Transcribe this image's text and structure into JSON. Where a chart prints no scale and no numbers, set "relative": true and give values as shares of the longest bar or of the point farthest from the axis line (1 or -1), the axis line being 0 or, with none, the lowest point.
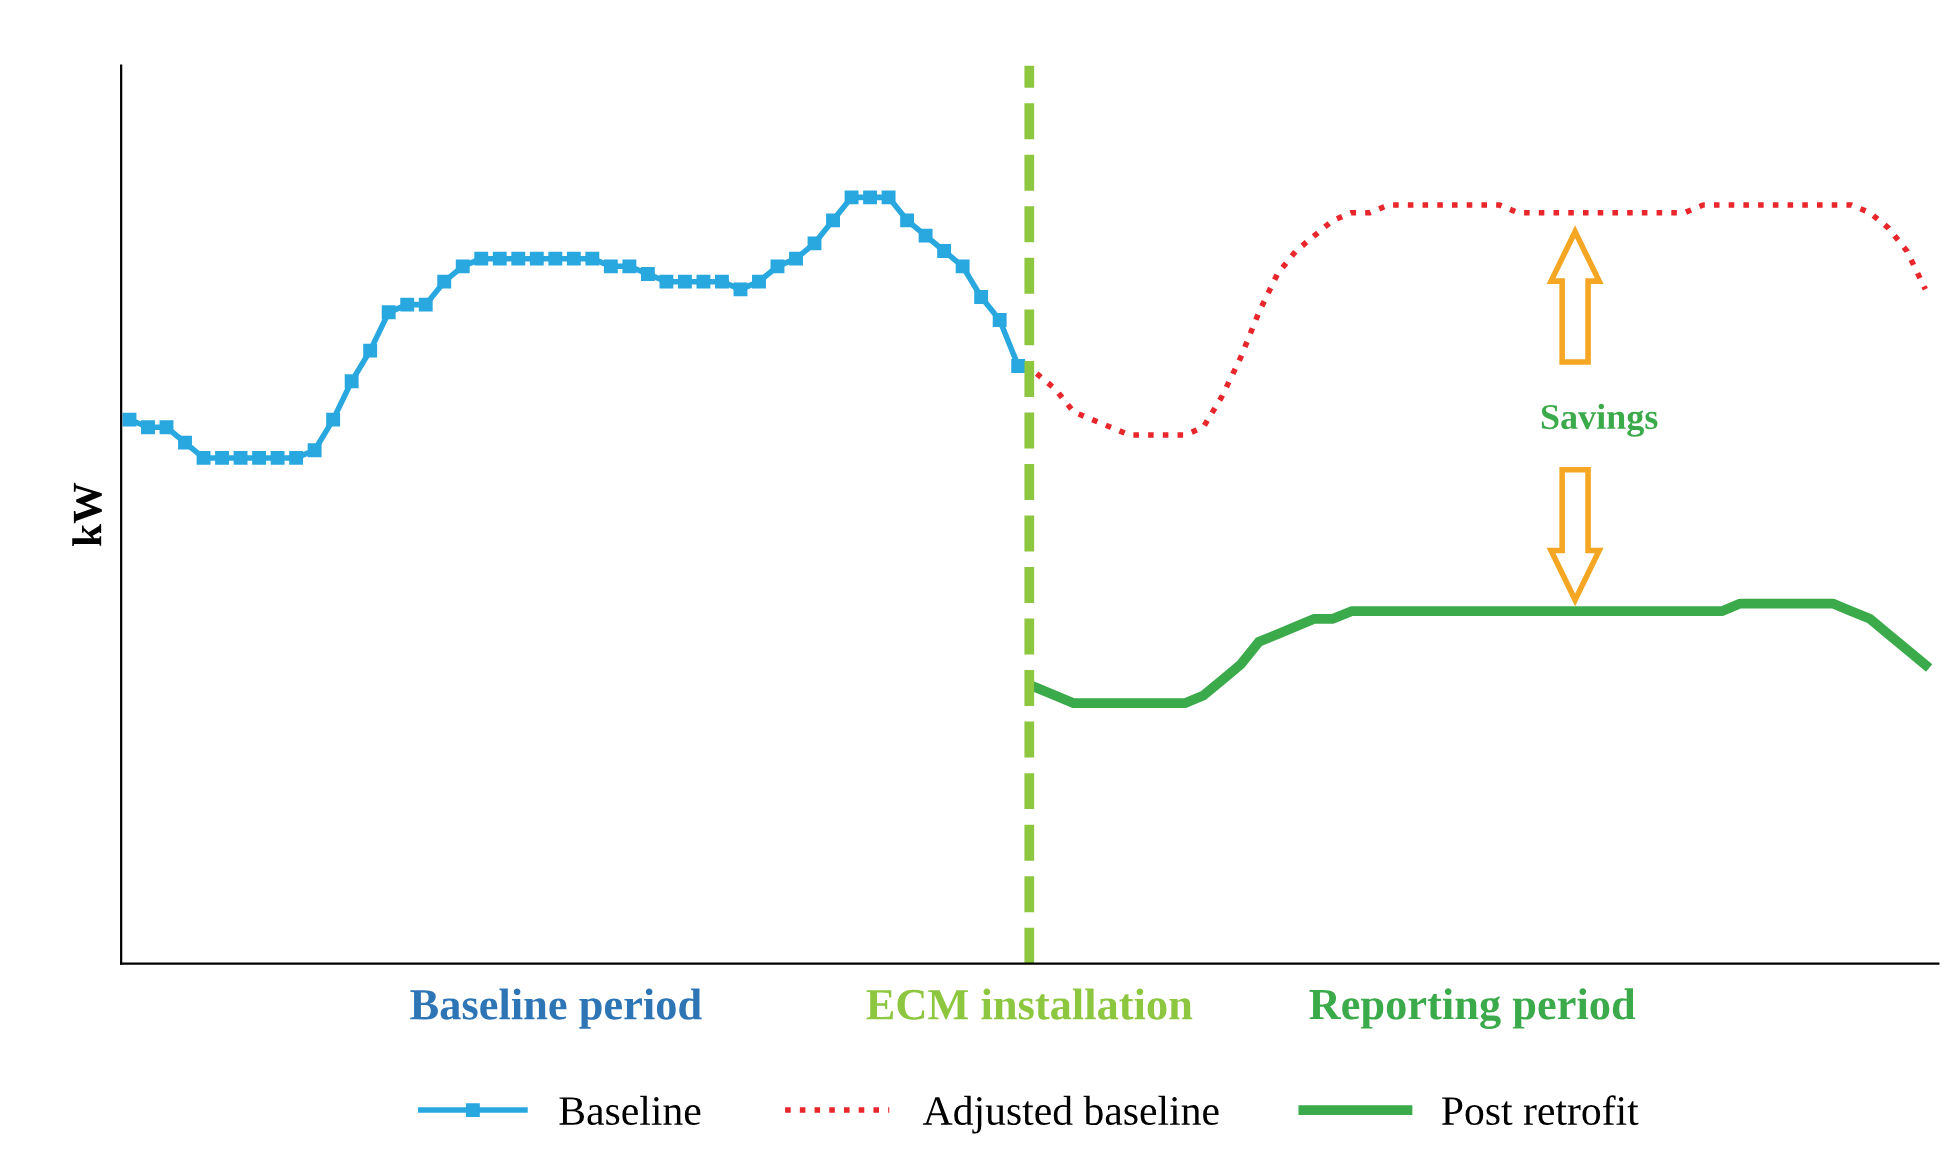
{
  "chart_data": {
    "type": "line",
    "relative": true,
    "ylabel": "kW",
    "categories": [
      null,
      null,
      null,
      null,
      null,
      null,
      null,
      null,
      null,
      null,
      null,
      null,
      null,
      null,
      null,
      null,
      null,
      null,
      null,
      null,
      null,
      null,
      null,
      null,
      null,
      null,
      null,
      null,
      null,
      null,
      null,
      null,
      null,
      null,
      null,
      null,
      null,
      null,
      null,
      null,
      null,
      null,
      null,
      null,
      null,
      null,
      null,
      null,
      null,
      null,
      null,
      null,
      null,
      null,
      null,
      null,
      null,
      null,
      null,
      null,
      null,
      null,
      null,
      null,
      null,
      null,
      null,
      null,
      null,
      null,
      null,
      null,
      null,
      null,
      null,
      null,
      null,
      null,
      null,
      null,
      null,
      null,
      null,
      null,
      null,
      null,
      null,
      null,
      null,
      null,
      null,
      null,
      null,
      null,
      null,
      null,
      null,
      null
    ],
    "series": [
      {
        "name": "Baseline",
        "color": "#29a8e0",
        "marker": "square",
        "line_style": "solid",
        "values": [
          0.71,
          0.7,
          0.7,
          0.68,
          0.66,
          0.66,
          0.66,
          0.66,
          0.66,
          0.66,
          0.67,
          0.71,
          0.76,
          0.8,
          0.85,
          0.86,
          0.86,
          0.89,
          0.91,
          0.92,
          0.92,
          0.92,
          0.92,
          0.92,
          0.92,
          0.92,
          0.91,
          0.91,
          0.9,
          0.89,
          0.89,
          0.89,
          0.89,
          0.88,
          0.89,
          0.91,
          0.92,
          0.94,
          0.97,
          1.0,
          1.0,
          1.0,
          0.97,
          0.95,
          0.93,
          0.91,
          0.87,
          0.84,
          0.78,
          null,
          null,
          null,
          null,
          null,
          null,
          null,
          null,
          null,
          null,
          null,
          null,
          null,
          null,
          null,
          null,
          null,
          null,
          null,
          null,
          null,
          null,
          null,
          null,
          null,
          null,
          null,
          null,
          null,
          null,
          null,
          null,
          null,
          null,
          null,
          null,
          null,
          null,
          null,
          null,
          null,
          null,
          null,
          null,
          null,
          null,
          null,
          null,
          null
        ]
      },
      {
        "name": "Adjusted baseline",
        "color": "#e8262b",
        "marker": "none",
        "line_style": "dotted",
        "values": [
          null,
          null,
          null,
          null,
          null,
          null,
          null,
          null,
          null,
          null,
          null,
          null,
          null,
          null,
          null,
          null,
          null,
          null,
          null,
          null,
          null,
          null,
          null,
          null,
          null,
          null,
          null,
          null,
          null,
          null,
          null,
          null,
          null,
          null,
          null,
          null,
          null,
          null,
          null,
          null,
          null,
          null,
          null,
          null,
          null,
          null,
          null,
          null,
          null,
          0.77,
          0.75,
          0.72,
          0.71,
          0.7,
          0.69,
          0.69,
          0.69,
          0.69,
          0.7,
          0.74,
          0.79,
          0.85,
          0.9,
          0.93,
          0.95,
          0.97,
          0.98,
          0.98,
          0.99,
          0.99,
          0.99,
          0.99,
          0.99,
          0.99,
          0.99,
          0.98,
          0.98,
          0.98,
          0.98,
          0.98,
          0.98,
          0.98,
          0.98,
          0.98,
          0.98,
          0.99,
          0.99,
          0.99,
          0.99,
          0.99,
          0.99,
          0.99,
          0.99,
          0.99,
          0.98,
          0.96,
          0.93,
          0.88
        ]
      },
      {
        "name": "Post retrofit",
        "color": "#3aaa4a",
        "marker": "none",
        "line_style": "solid",
        "values": [
          null,
          null,
          null,
          null,
          null,
          null,
          null,
          null,
          null,
          null,
          null,
          null,
          null,
          null,
          null,
          null,
          null,
          null,
          null,
          null,
          null,
          null,
          null,
          null,
          null,
          null,
          null,
          null,
          null,
          null,
          null,
          null,
          null,
          null,
          null,
          null,
          null,
          null,
          null,
          null,
          null,
          null,
          null,
          null,
          null,
          null,
          null,
          null,
          null,
          0.36,
          0.35,
          0.34,
          0.34,
          0.34,
          0.34,
          0.34,
          0.34,
          0.34,
          0.35,
          0.37,
          0.39,
          0.42,
          0.43,
          0.44,
          0.45,
          0.45,
          0.46,
          0.46,
          0.46,
          0.46,
          0.46,
          0.46,
          0.46,
          0.46,
          0.46,
          0.46,
          0.46,
          0.46,
          0.46,
          0.46,
          0.46,
          0.46,
          0.46,
          0.46,
          0.46,
          0.46,
          0.46,
          0.47,
          0.47,
          0.47,
          0.47,
          0.47,
          0.47,
          0.46,
          0.45,
          0.43,
          0.41,
          0.39
        ]
      }
    ],
    "annotations": [
      "Baseline period",
      "Reporting period",
      "Savings",
      "ECM installation"
    ],
    "legend": "bottom"
  }
}
